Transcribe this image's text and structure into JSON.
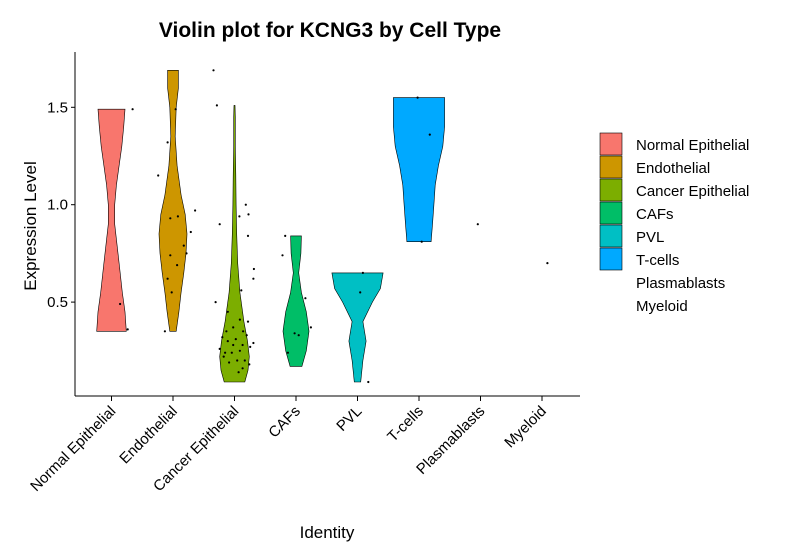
{
  "chart_data": {
    "type": "violin",
    "title": "Violin plot for KCNG3 by Cell Type",
    "xlabel": "Identity",
    "ylabel": "Expression Level",
    "categories": [
      "Normal Epithelial",
      "Endothelial",
      "Cancer Epithelial",
      "CAFs",
      "PVL",
      "T-cells",
      "Plasmablasts",
      "Myeloid"
    ],
    "colors": [
      "#F8766D",
      "#CD9600",
      "#7CAE00",
      "#00BE67",
      "#00BFC4",
      "#00A9FF",
      "#C77CFF",
      "#FF61CC"
    ],
    "yticks": [
      0.5,
      1.0,
      1.5
    ],
    "ytick_labels": [
      "0.5",
      "1.0",
      "1.5"
    ],
    "ylim": [
      0.0,
      1.76
    ],
    "legend_position": "right",
    "violins": [
      {
        "name": "Normal Epithelial",
        "min": 0.35,
        "max": 1.49,
        "profile": [
          [
            0.35,
            0.55
          ],
          [
            0.45,
            0.5
          ],
          [
            0.55,
            0.4
          ],
          [
            0.7,
            0.28
          ],
          [
            0.8,
            0.2
          ],
          [
            0.9,
            0.12
          ],
          [
            1.0,
            0.12
          ],
          [
            1.1,
            0.18
          ],
          [
            1.2,
            0.28
          ],
          [
            1.3,
            0.38
          ],
          [
            1.4,
            0.45
          ],
          [
            1.49,
            0.5
          ]
        ],
        "points": [
          [
            0.49,
            0.32
          ],
          [
            0.36,
            0.6
          ],
          [
            1.49,
            0.78
          ]
        ]
      },
      {
        "name": "Endothelial",
        "min": 0.35,
        "max": 1.69,
        "profile": [
          [
            0.35,
            0.12
          ],
          [
            0.45,
            0.22
          ],
          [
            0.55,
            0.3
          ],
          [
            0.65,
            0.4
          ],
          [
            0.75,
            0.48
          ],
          [
            0.85,
            0.52
          ],
          [
            0.95,
            0.45
          ],
          [
            1.05,
            0.3
          ],
          [
            1.2,
            0.15
          ],
          [
            1.35,
            0.08
          ],
          [
            1.5,
            0.12
          ],
          [
            1.6,
            0.2
          ],
          [
            1.69,
            0.2
          ]
        ],
        "points": [
          [
            0.35,
            -0.3
          ],
          [
            0.74,
            -0.1
          ],
          [
            0.79,
            0.4
          ],
          [
            0.93,
            -0.1
          ],
          [
            0.62,
            -0.2
          ],
          [
            0.69,
            0.15
          ],
          [
            1.49,
            0.1
          ],
          [
            1.32,
            -0.2
          ],
          [
            1.69,
            1.5
          ],
          [
            0.94,
            0.18
          ],
          [
            0.55,
            -0.05
          ],
          [
            0.86,
            0.66
          ],
          [
            0.97,
            0.82
          ],
          [
            0.75,
            0.5
          ],
          [
            1.15,
            -0.55
          ]
        ]
      },
      {
        "name": "Cancer Epithelial",
        "min": 0.09,
        "max": 1.51,
        "profile": [
          [
            0.09,
            0.38
          ],
          [
            0.15,
            0.5
          ],
          [
            0.22,
            0.55
          ],
          [
            0.3,
            0.48
          ],
          [
            0.4,
            0.35
          ],
          [
            0.55,
            0.2
          ],
          [
            0.7,
            0.12
          ],
          [
            0.85,
            0.08
          ],
          [
            1.0,
            0.06
          ],
          [
            1.15,
            0.05
          ],
          [
            1.3,
            0.03
          ],
          [
            1.45,
            0.03
          ],
          [
            1.51,
            0.02
          ]
        ],
        "points": [
          [
            0.26,
            -0.55
          ],
          [
            0.22,
            -0.4
          ],
          [
            0.3,
            -0.25
          ],
          [
            0.24,
            -0.1
          ],
          [
            0.2,
            0.1
          ],
          [
            0.28,
            0.3
          ],
          [
            0.33,
            0.45
          ],
          [
            0.18,
            0.55
          ],
          [
            0.35,
            -0.3
          ],
          [
            0.31,
            0.05
          ],
          [
            0.25,
            0.2
          ],
          [
            0.37,
            -0.05
          ],
          [
            0.16,
            0.3
          ],
          [
            0.19,
            -0.2
          ],
          [
            0.4,
            0.5
          ],
          [
            0.29,
            0.7
          ],
          [
            0.32,
            -0.45
          ],
          [
            0.5,
            -0.7
          ],
          [
            0.45,
            -0.25
          ],
          [
            0.62,
            0.7
          ],
          [
            0.67,
            0.72
          ],
          [
            0.84,
            0.5
          ],
          [
            1.0,
            0.42
          ],
          [
            0.94,
            0.18
          ],
          [
            0.9,
            -0.55
          ],
          [
            0.95,
            0.52
          ],
          [
            1.51,
            -0.65
          ],
          [
            0.2,
            0.38
          ],
          [
            0.24,
            -0.35
          ],
          [
            0.14,
            0.15
          ],
          [
            0.41,
            0.2
          ],
          [
            0.56,
            0.25
          ],
          [
            0.28,
            -0.05
          ],
          [
            0.35,
            0.32
          ],
          [
            0.27,
            0.58
          ]
        ]
      },
      {
        "name": "CAFs",
        "min": 0.17,
        "max": 0.84,
        "profile": [
          [
            0.17,
            0.22
          ],
          [
            0.25,
            0.38
          ],
          [
            0.35,
            0.48
          ],
          [
            0.45,
            0.38
          ],
          [
            0.55,
            0.2
          ],
          [
            0.65,
            0.1
          ],
          [
            0.75,
            0.18
          ],
          [
            0.84,
            0.2
          ]
        ],
        "points": [
          [
            0.84,
            -0.4
          ],
          [
            0.34,
            -0.05
          ],
          [
            0.24,
            -0.3
          ],
          [
            0.37,
            0.55
          ],
          [
            0.33,
            0.1
          ],
          [
            0.74,
            -0.5
          ],
          [
            0.52,
            0.35
          ]
        ]
      },
      {
        "name": "PVL",
        "min": 0.09,
        "max": 0.65,
        "profile": [
          [
            0.09,
            0.12
          ],
          [
            0.2,
            0.2
          ],
          [
            0.3,
            0.32
          ],
          [
            0.4,
            0.2
          ],
          [
            0.5,
            0.55
          ],
          [
            0.57,
            0.85
          ],
          [
            0.65,
            0.95
          ]
        ],
        "points": [
          [
            0.65,
            0.2
          ],
          [
            0.55,
            0.1
          ],
          [
            0.09,
            0.4
          ]
        ]
      },
      {
        "name": "T-cells",
        "min": 0.81,
        "max": 1.55,
        "profile": [
          [
            0.81,
            0.45
          ],
          [
            0.9,
            0.5
          ],
          [
            1.0,
            0.55
          ],
          [
            1.1,
            0.6
          ],
          [
            1.2,
            0.72
          ],
          [
            1.3,
            0.88
          ],
          [
            1.4,
            0.95
          ],
          [
            1.5,
            0.95
          ],
          [
            1.55,
            0.95
          ]
        ],
        "points": [
          [
            0.81,
            0.1
          ],
          [
            1.36,
            0.4
          ],
          [
            1.55,
            -0.05
          ]
        ]
      },
      {
        "name": "Plasmablasts",
        "min": 0.9,
        "max": 0.9,
        "profile": [],
        "points": [
          [
            0.9,
            -0.1
          ]
        ]
      },
      {
        "name": "Myeloid",
        "min": 0.7,
        "max": 0.7,
        "profile": [],
        "points": [
          [
            0.7,
            0.2
          ]
        ]
      }
    ]
  }
}
